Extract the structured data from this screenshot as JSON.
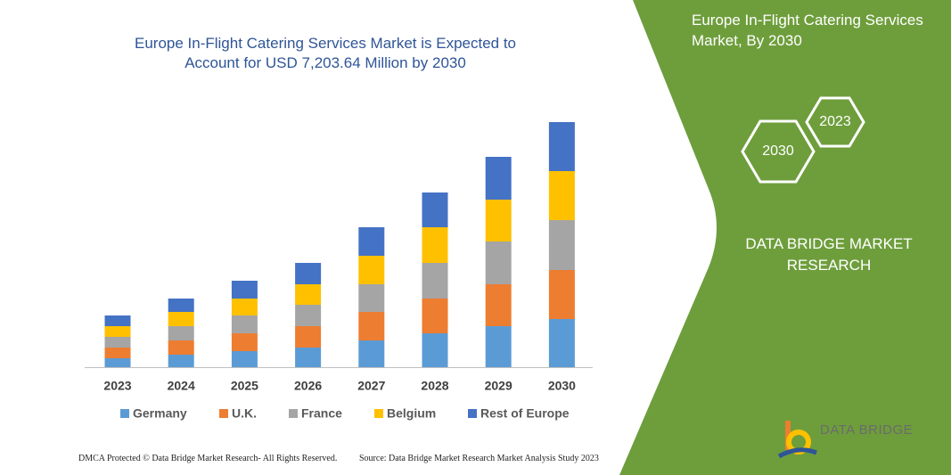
{
  "chart_data": {
    "type": "bar",
    "stacked": true,
    "title": "Europe In-Flight Catering Services Market is Expected to Account for USD 7,203.64 Million by 2030",
    "categories": [
      "2023",
      "2024",
      "2025",
      "2026",
      "2027",
      "2028",
      "2029",
      "2030"
    ],
    "series": [
      {
        "name": "Germany",
        "color": "#5b9bd5",
        "values": [
          10,
          14,
          18,
          22,
          30,
          38,
          46,
          54
        ]
      },
      {
        "name": "U.K.",
        "color": "#ed7d31",
        "values": [
          12,
          16,
          20,
          24,
          32,
          39,
          47,
          55
        ]
      },
      {
        "name": "France",
        "color": "#a5a5a5",
        "values": [
          12,
          16,
          20,
          24,
          31,
          40,
          48,
          56
        ]
      },
      {
        "name": "Belgium",
        "color": "#ffc000",
        "values": [
          12,
          16,
          19,
          23,
          32,
          40,
          47,
          55
        ]
      },
      {
        "name": "Rest of Europe",
        "color": "#4472c4",
        "values": [
          12,
          15,
          20,
          24,
          32,
          39,
          48,
          55
        ]
      }
    ]
  },
  "panel": {
    "title": "Europe In-Flight Catering Services Market, By 2030",
    "hex_labels": [
      "2030",
      "2023"
    ],
    "brand": "DATA BRIDGE MARKET RESEARCH"
  },
  "logo": {
    "text": "DATA BRIDGE"
  },
  "footer": {
    "left": "DMCA Protected © Data Bridge Market Research-  All Rights Reserved.",
    "right": "Source: Data Bridge Market Research  Market Analysis Study 2023"
  }
}
